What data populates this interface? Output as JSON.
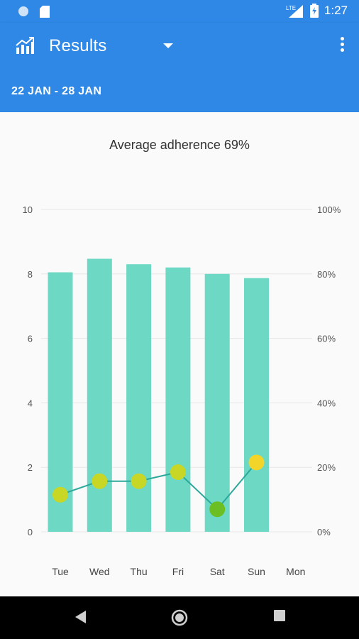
{
  "status_bar": {
    "time": "1:27",
    "network": "LTE",
    "icons": [
      "notification-dot-icon",
      "sd-card-icon",
      "signal-icon",
      "battery-icon"
    ]
  },
  "app_bar": {
    "title": "Results",
    "icon": "chart-icon",
    "menu_icon": "more-vert-icon",
    "date_range": "22 JAN - 28 JAN"
  },
  "summary": {
    "text": "Average adherence 69%"
  },
  "colors": {
    "primary": "#2f88e6",
    "bar": "#6dd8c4",
    "line": "#2aa89a",
    "point_yellow_green": "#c8d625",
    "point_green": "#6bbf22",
    "point_yellow": "#f3d52a"
  },
  "chart_data": {
    "type": "bar",
    "categories": [
      "Tue",
      "Wed",
      "Thu",
      "Fri",
      "Sat",
      "Sun",
      "Mon"
    ],
    "series": [
      {
        "type": "bar",
        "axis": "left",
        "values": [
          8.05,
          8.47,
          8.3,
          8.2,
          8.0,
          7.87,
          null
        ]
      },
      {
        "type": "line",
        "axis": "right",
        "values": [
          11.5,
          15.7,
          15.7,
          18.5,
          7.0,
          21.5,
          null
        ]
      }
    ],
    "left_axis": {
      "ticks": [
        "0",
        "2",
        "4",
        "6",
        "8",
        "10"
      ],
      "range": [
        0,
        10
      ]
    },
    "right_axis": {
      "ticks": [
        "0%",
        "20%",
        "40%",
        "60%",
        "80%",
        "100%"
      ],
      "range": [
        0,
        100
      ]
    },
    "grid": true
  },
  "nav_bar": {
    "icons": [
      "back-icon",
      "home-icon",
      "recents-icon"
    ]
  }
}
